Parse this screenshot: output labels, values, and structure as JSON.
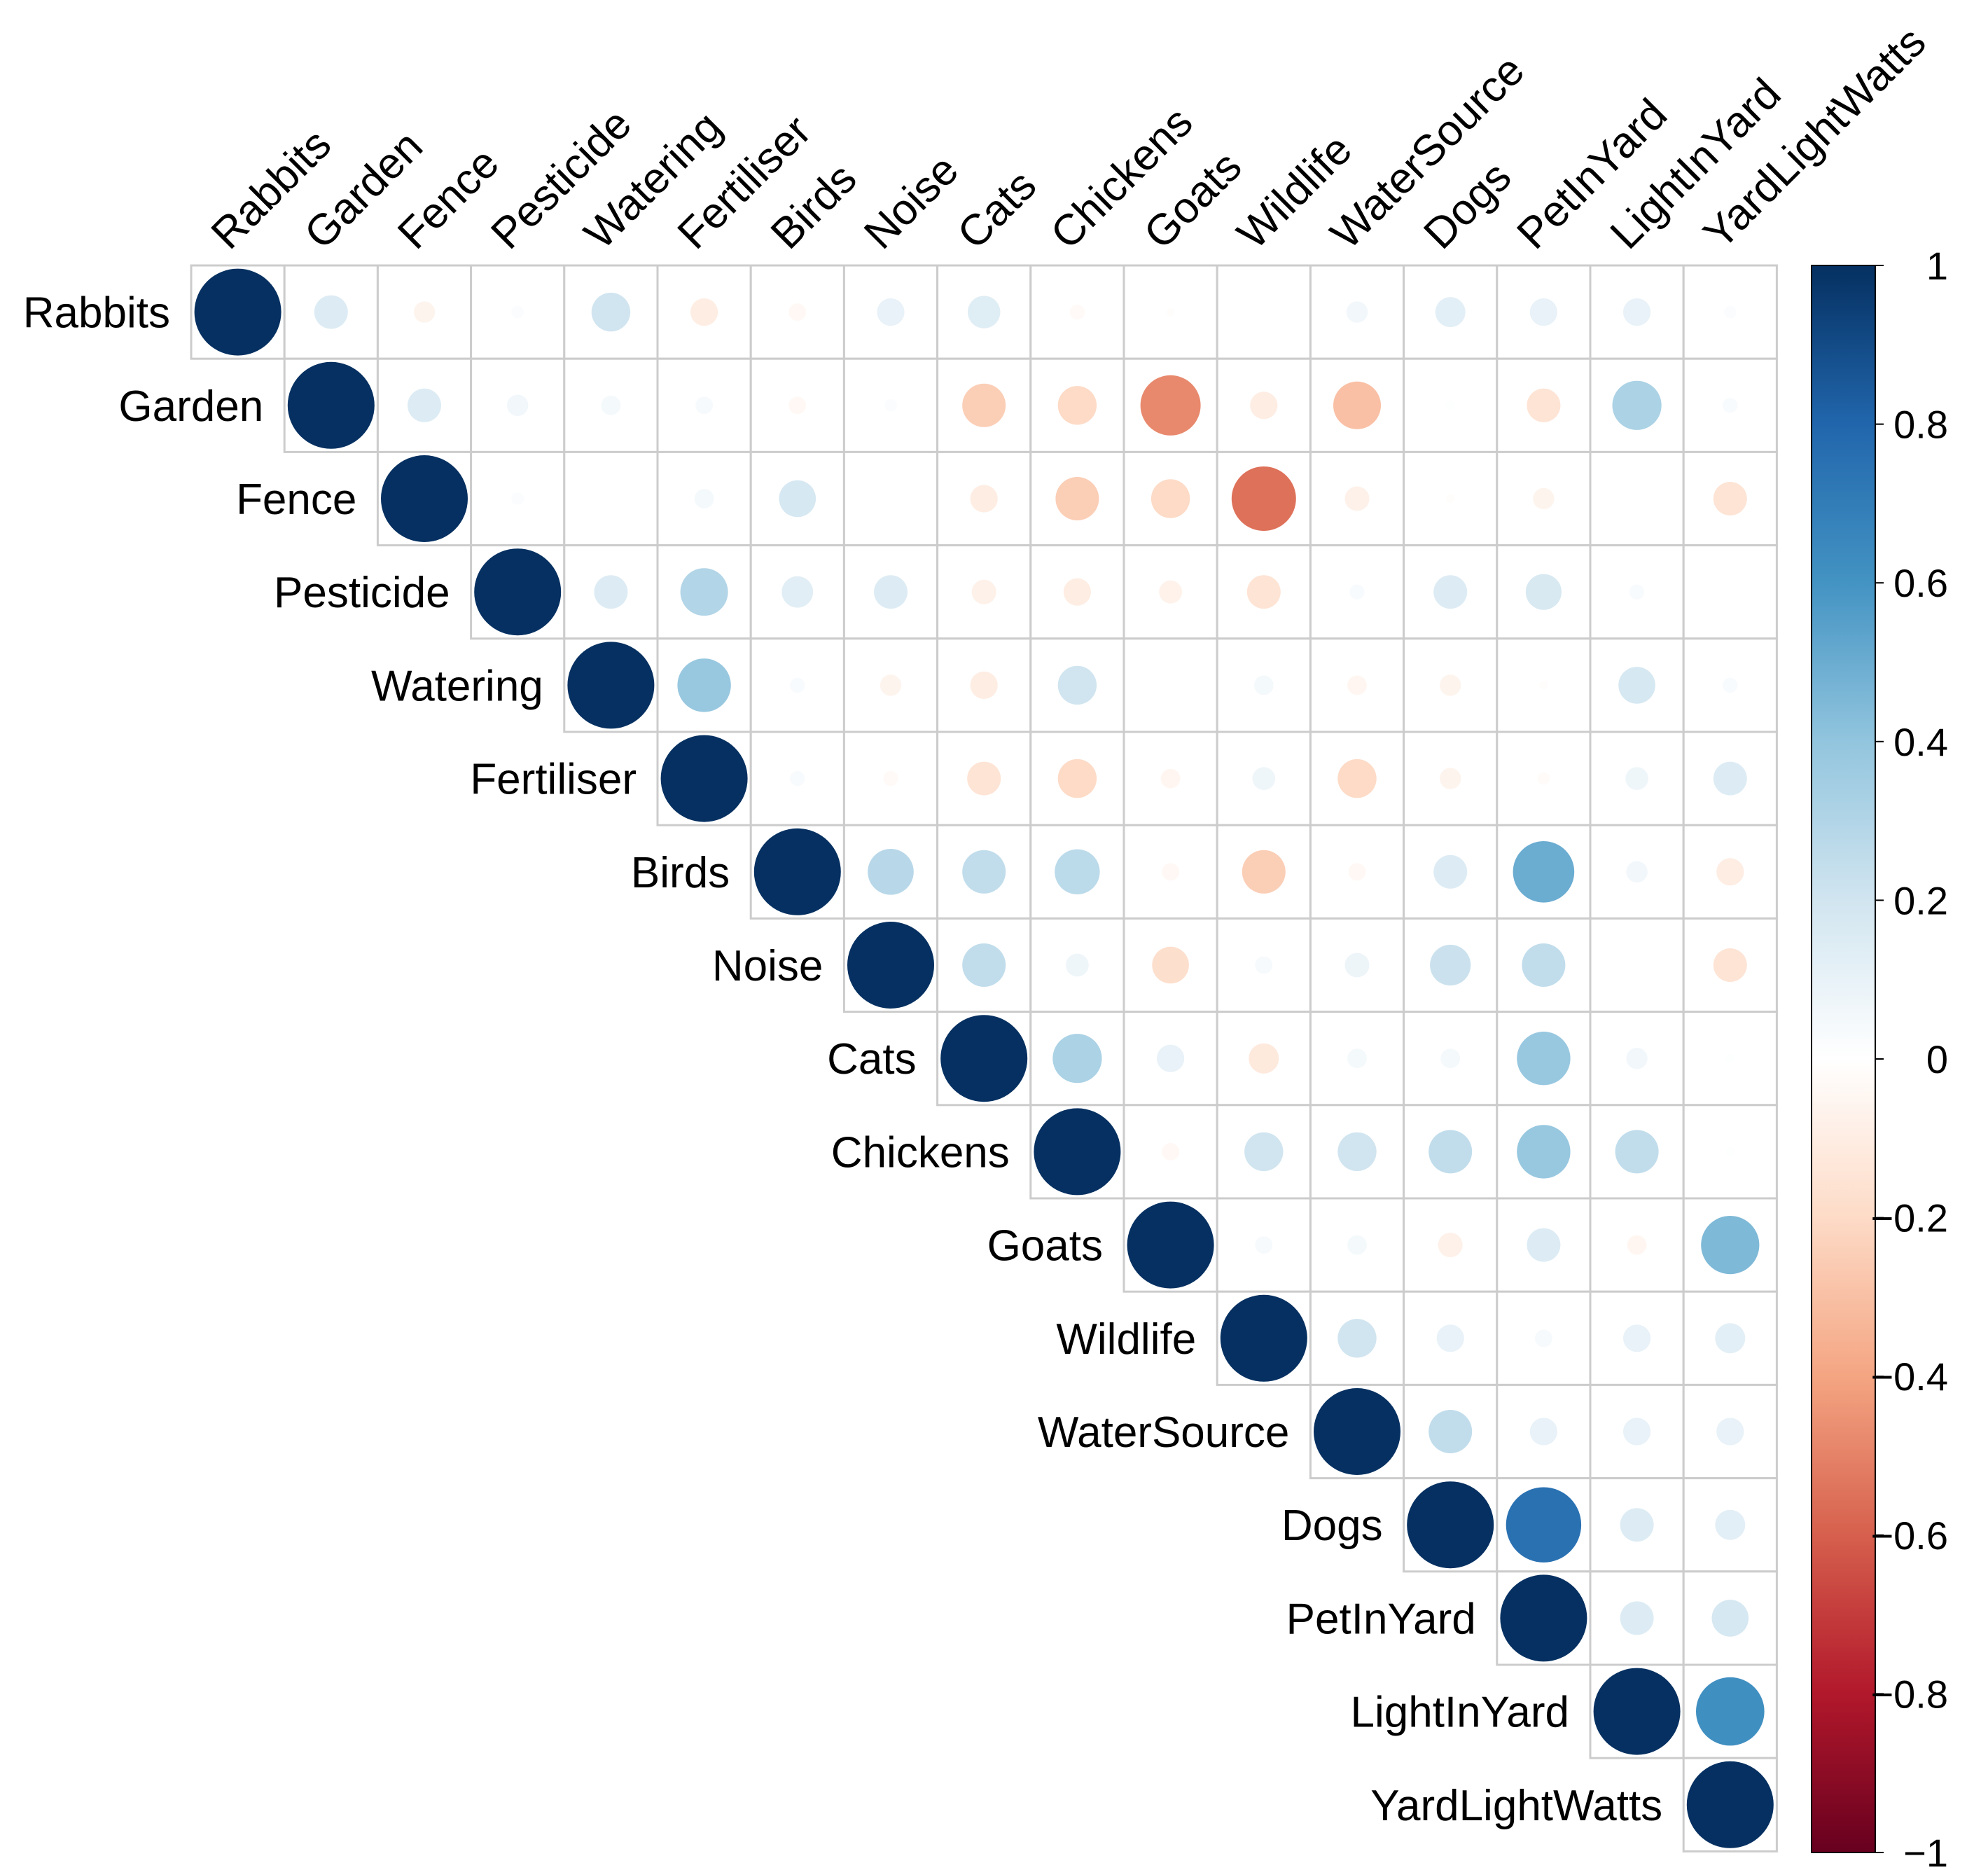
{
  "chart_data": {
    "type": "heatmap",
    "variables": [
      "Rabbits",
      "Garden",
      "Fence",
      "Pesticide",
      "Watering",
      "Fertiliser",
      "Birds",
      "Noise",
      "Cats",
      "Chickens",
      "Goats",
      "Wildlife",
      "WaterSource",
      "Dogs",
      "PetInYard",
      "LightInYard",
      "YardLightWatts"
    ],
    "matrix": [
      [
        1,
        0.15,
        -0.06,
        0.02,
        0.2,
        -0.1,
        -0.04,
        0.1,
        0.14,
        -0.03,
        -0.01,
        0.0,
        0.06,
        0.12,
        0.1,
        0.1,
        0.02
      ],
      [
        0.15,
        1,
        0.15,
        0.06,
        0.05,
        0.04,
        -0.04,
        0.02,
        -0.25,
        -0.2,
        -0.48,
        -0.1,
        -0.3,
        0.01,
        -0.15,
        0.32,
        0.03
      ],
      [
        -0.06,
        0.15,
        1,
        0.02,
        0.0,
        0.05,
        0.18,
        0.0,
        -0.1,
        -0.25,
        -0.2,
        -0.55,
        -0.08,
        -0.01,
        -0.06,
        0.0,
        -0.15
      ],
      [
        0.02,
        0.06,
        0.02,
        1,
        0.15,
        0.3,
        0.13,
        0.15,
        -0.08,
        -0.1,
        -0.07,
        -0.15,
        0.03,
        0.15,
        0.17,
        0.03,
        0.0
      ],
      [
        0.2,
        0.05,
        0.0,
        0.15,
        1,
        0.38,
        0.03,
        -0.06,
        -0.1,
        0.2,
        0.0,
        0.05,
        -0.05,
        -0.06,
        -0.01,
        0.18,
        0.03
      ],
      [
        -0.1,
        0.04,
        0.05,
        0.3,
        0.38,
        1,
        0.03,
        -0.03,
        -0.15,
        -0.2,
        -0.05,
        0.07,
        -0.2,
        -0.06,
        -0.02,
        0.07,
        0.15
      ],
      [
        -0.04,
        -0.04,
        0.18,
        0.13,
        0.03,
        0.03,
        1,
        0.28,
        0.25,
        0.27,
        -0.04,
        -0.25,
        -0.04,
        0.15,
        0.5,
        0.06,
        -0.1
      ],
      [
        0.1,
        0.02,
        0.0,
        0.15,
        -0.06,
        -0.03,
        0.28,
        1,
        0.25,
        0.07,
        -0.18,
        0.04,
        0.08,
        0.22,
        0.25,
        0.0,
        -0.15
      ],
      [
        0.14,
        -0.25,
        -0.1,
        -0.08,
        -0.1,
        -0.15,
        0.25,
        0.25,
        1,
        0.32,
        0.1,
        -0.12,
        0.05,
        0.05,
        0.38,
        0.06,
        0.01
      ],
      [
        -0.03,
        -0.2,
        -0.25,
        -0.1,
        0.2,
        -0.2,
        0.27,
        0.07,
        0.32,
        1,
        -0.04,
        0.2,
        0.2,
        0.25,
        0.38,
        0.25,
        0.01
      ],
      [
        -0.01,
        -0.48,
        -0.2,
        -0.07,
        0.0,
        -0.05,
        -0.04,
        -0.18,
        0.1,
        -0.04,
        1,
        0.04,
        0.05,
        -0.08,
        0.15,
        -0.05,
        0.45
      ],
      [
        0.0,
        -0.1,
        -0.55,
        -0.15,
        0.05,
        0.07,
        -0.25,
        0.04,
        -0.12,
        0.2,
        0.04,
        1,
        0.2,
        0.1,
        0.04,
        0.1,
        0.12
      ],
      [
        0.06,
        -0.3,
        -0.08,
        0.03,
        -0.05,
        -0.2,
        -0.04,
        0.08,
        0.05,
        0.2,
        0.05,
        0.2,
        1,
        0.25,
        0.1,
        0.1,
        0.1
      ],
      [
        0.12,
        0.01,
        -0.01,
        0.15,
        -0.06,
        -0.06,
        0.15,
        0.22,
        0.05,
        0.25,
        -0.08,
        0.1,
        0.25,
        1,
        0.75,
        0.15,
        0.12
      ],
      [
        0.1,
        -0.15,
        -0.06,
        0.17,
        -0.01,
        -0.02,
        0.5,
        0.25,
        0.38,
        0.38,
        0.15,
        0.04,
        0.1,
        0.75,
        1,
        0.15,
        0.18
      ],
      [
        0.1,
        0.32,
        0.0,
        0.03,
        0.18,
        0.07,
        0.06,
        0.0,
        0.06,
        0.25,
        -0.05,
        0.1,
        0.1,
        0.15,
        0.15,
        1,
        0.62
      ],
      [
        0.02,
        0.03,
        -0.15,
        0.0,
        0.03,
        0.15,
        -0.1,
        -0.15,
        0.01,
        0.01,
        0.45,
        0.12,
        0.1,
        0.12,
        0.18,
        0.62,
        1
      ]
    ],
    "scale": {
      "min": -1,
      "max": 1,
      "tick_labels": [
        "1",
        "0.8",
        "0.6",
        "0.4",
        "0.2",
        "0",
        "−0.2",
        "−0.4",
        "−0.6",
        "−0.8",
        "−1"
      ]
    },
    "colors": {
      "neg_strong": "#67001f",
      "neg_mid": "#d6604d",
      "neg_light": "#fddbc7",
      "neutral": "#ffffff",
      "pos_light": "#d1e5f0",
      "pos_mid": "#4393c3",
      "pos_strong": "#053061",
      "grid": "#cccccc"
    },
    "mark": "circle",
    "layout": "upper-triangle",
    "legend": "right"
  }
}
